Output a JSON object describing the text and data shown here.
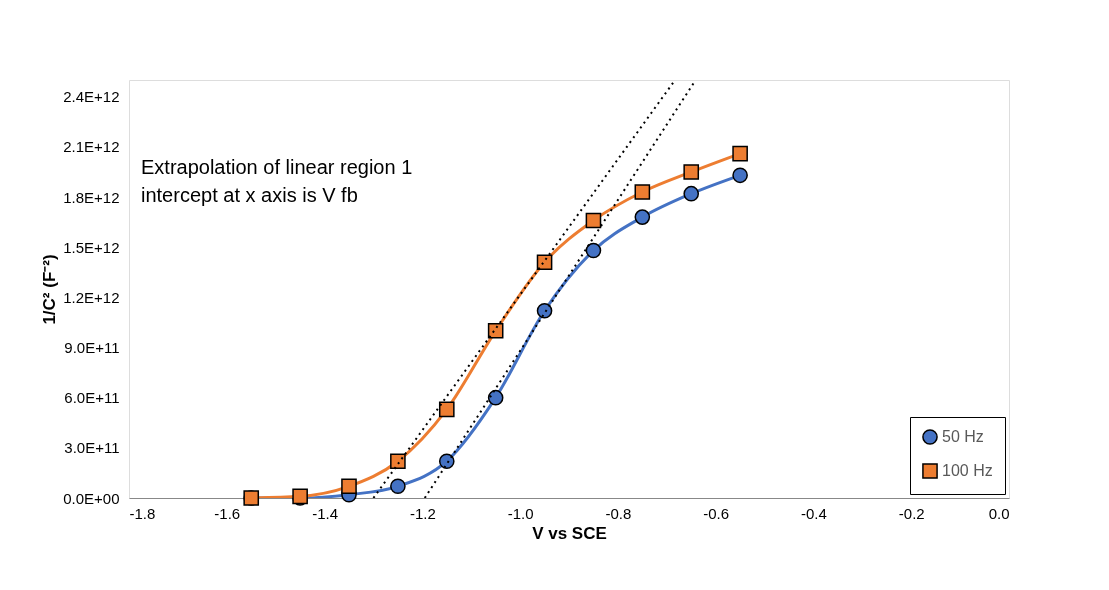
{
  "chart_data": {
    "type": "line",
    "xlabel": "V vs SCE",
    "ylabel": "1/C² (F⁻²)",
    "annotations": [
      "Extrapolation  of linear region 1\n intercept at x axis is V fb"
    ],
    "xlim": [
      -1.8,
      0.0
    ],
    "xticks": [
      {
        "value": -1.8,
        "label": "-1.8"
      },
      {
        "value": -1.6,
        "label": "-1.6"
      },
      {
        "value": -1.4,
        "label": "-1.4"
      },
      {
        "value": -1.2,
        "label": "-1.2"
      },
      {
        "value": -1.0,
        "label": "-1.0"
      },
      {
        "value": -0.8,
        "label": "-0.8"
      },
      {
        "value": -0.6,
        "label": "-0.6"
      },
      {
        "value": -0.4,
        "label": "-0.4"
      },
      {
        "value": -0.2,
        "label": "-0.2"
      },
      {
        "value": 0.0,
        "label": "0.0"
      }
    ],
    "ylim": [
      0,
      2500000000000.0
    ],
    "yticks": [
      {
        "value": 0,
        "label": "0.0E+00"
      },
      {
        "value": 300000000000.0,
        "label": "3.0E+11"
      },
      {
        "value": 600000000000.0,
        "label": "6.0E+11"
      },
      {
        "value": 900000000000.0,
        "label": "9.0E+11"
      },
      {
        "value": 1200000000000.0,
        "label": "1.2E+12"
      },
      {
        "value": 1500000000000.0,
        "label": "1.5E+12"
      },
      {
        "value": 1800000000000.0,
        "label": "1.8E+12"
      },
      {
        "value": 2100000000000.0,
        "label": "2.1E+12"
      },
      {
        "value": 2400000000000.0,
        "label": "2.4E+12"
      }
    ],
    "grid": false,
    "legend": "bottom right",
    "series": [
      {
        "name": "50 Hz",
        "color": "#4472c4",
        "marker": "circle",
        "line_style": "solid",
        "x": [
          -1.55,
          -1.45,
          -1.35,
          -1.25,
          -1.15,
          -1.05,
          -0.95,
          -0.85,
          -0.75,
          -0.65,
          -0.55
        ],
        "values": [
          0,
          0,
          20000000000.0,
          70000000000.0,
          220000000000.0,
          600000000000.0,
          1120000000000.0,
          1480000000000.0,
          1680000000000.0,
          1820000000000.0,
          1930000000000.0
        ]
      },
      {
        "name": "100 Hz",
        "color": "#ed7d31",
        "marker": "square",
        "line_style": "solid",
        "x": [
          -1.55,
          -1.45,
          -1.35,
          -1.25,
          -1.15,
          -1.05,
          -0.95,
          -0.85,
          -0.75,
          -0.65,
          -0.55
        ],
        "values": [
          0,
          10000000000.0,
          70000000000.0,
          220000000000.0,
          530000000000.0,
          1000000000000.0,
          1410000000000.0,
          1660000000000.0,
          1830000000000.0,
          1950000000000.0,
          2060000000000.0
        ]
      },
      {
        "type": "line",
        "color": "#000000",
        "marker": "none",
        "line_style": "dotted",
        "x": [
          -1.3,
          -0.683
        ],
        "values": [
          0,
          2500000000000.0
        ]
      },
      {
        "type": "line",
        "color": "#000000",
        "marker": "none",
        "line_style": "dotted",
        "x": [
          -1.195,
          -0.641
        ],
        "values": [
          0,
          2500000000000.0
        ]
      }
    ]
  }
}
